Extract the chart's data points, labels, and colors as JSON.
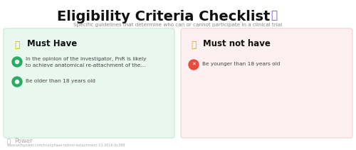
{
  "title": "Eligibility Criteria Checklist",
  "subtitle": "Specific guidelines that determine who can or cannot participate in a clinical trial",
  "left_box_color": "#e8f8f0",
  "right_box_color": "#fdf0f0",
  "left_box_edge": "#c5e8d0",
  "right_box_edge": "#f0d0cc",
  "left_header": "Must Have",
  "right_header": "Must not have",
  "left_items": [
    "In the opinion of the investigator, PnR is likely\nto achieve anatomical re-attachment of the...",
    "Be older than 18 years old"
  ],
  "right_items": [
    "Be younger than 18 years old"
  ],
  "left_item_icon_colors": [
    "#27ae60",
    "#27ae60"
  ],
  "right_item_icon_colors": [
    "#e74c3c"
  ],
  "background_color": "#ffffff",
  "title_color": "#111111",
  "subtitle_color": "#888888",
  "header_color": "#111111",
  "item_color": "#444444",
  "footer_text_color": "#aaaaaa",
  "footer_url": "www.withpower.com/trial/phase-retinal-detachment-10-2016-0c388",
  "thumbs_up_color": "#f0a500",
  "thumbs_down_color": "#f0a500",
  "clipboard_icon_color": "#7b52d4"
}
